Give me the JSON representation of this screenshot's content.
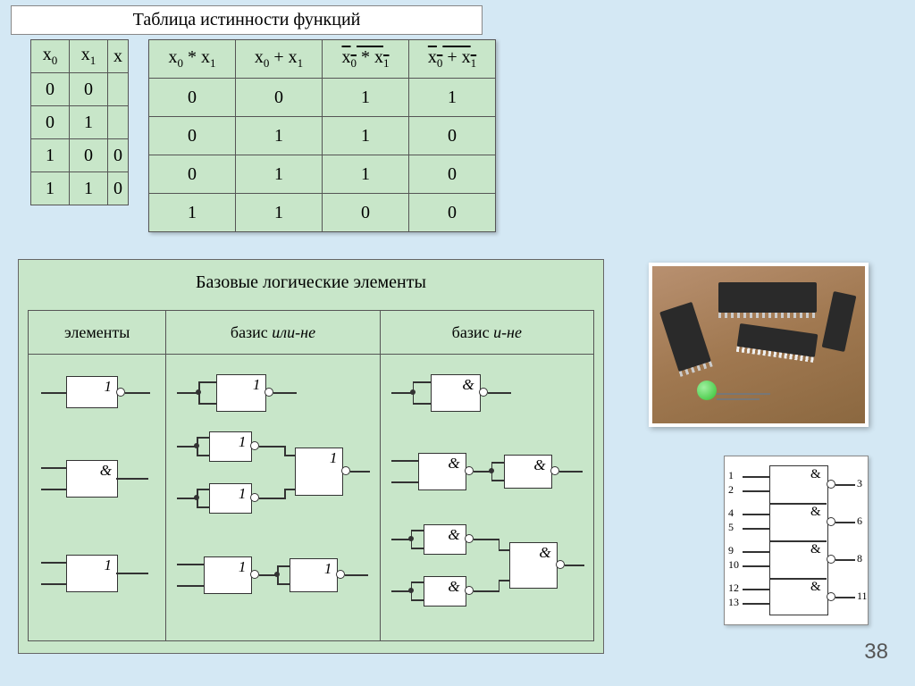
{
  "title_truth": "Таблица истинности функций",
  "left_table": {
    "headers": [
      "x0",
      "x1",
      "x"
    ],
    "rows": [
      [
        "0",
        "0",
        ""
      ],
      [
        "0",
        "1",
        ""
      ],
      [
        "1",
        "0",
        "0"
      ],
      [
        "1",
        "1",
        "0"
      ]
    ]
  },
  "right_table": {
    "headers": [
      {
        "html": "x<span class='sub'>0</span> * x<span class='sub'>1</span>",
        "overline": false
      },
      {
        "html": "x<span class='sub'>0</span> + x<span class='sub'>1</span>",
        "overline": false
      },
      {
        "html": "x<span class='sub'>0</span> * x<span class='sub'>1</span>",
        "overline": true
      },
      {
        "html": "x<span class='sub'>0</span> + x<span class='sub'>1</span>",
        "overline": true
      }
    ],
    "rows": [
      [
        "0",
        "0",
        "1",
        "1"
      ],
      [
        "0",
        "1",
        "1",
        "0"
      ],
      [
        "0",
        "1",
        "1",
        "0"
      ],
      [
        "1",
        "1",
        "0",
        "0"
      ]
    ]
  },
  "logic_title": "Базовые логические элементы",
  "logic_headers": {
    "col1": "элементы",
    "col2_prefix": "базис ",
    "col2_em": "или-не",
    "col3_prefix": "базис ",
    "col3_em": "и-не"
  },
  "gate_symbols": {
    "one": "1",
    "amp": "&"
  },
  "ic_schematic": {
    "pins_left": [
      "1",
      "2",
      "4",
      "5",
      "9",
      "10",
      "12",
      "13"
    ],
    "pins_right": [
      "3",
      "6",
      "8",
      "11"
    ],
    "gate_label": "&"
  },
  "page_number": "38",
  "colors": {
    "page_bg": "#d4e8f4",
    "panel_bg": "#c8e6c9",
    "border": "#555555",
    "chip": "#2a2a2a",
    "wood": "#a07850"
  }
}
